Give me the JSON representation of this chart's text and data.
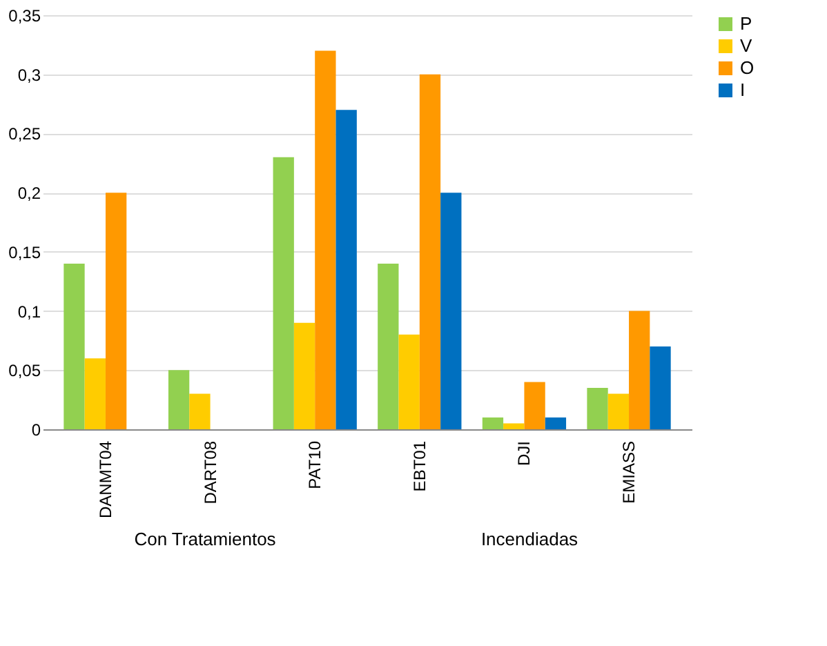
{
  "chart_data": {
    "type": "bar",
    "categories": [
      "DANMT04",
      "DART08",
      "PAT10",
      "EBT01",
      "DJI",
      "EMIASS"
    ],
    "series": [
      {
        "name": "P",
        "color": "#92d050",
        "values": [
          0.14,
          0.05,
          0.23,
          0.14,
          0.01,
          0.035
        ]
      },
      {
        "name": "V",
        "color": "#ffcc00",
        "values": [
          0.06,
          0.03,
          0.09,
          0.08,
          0.005,
          0.03
        ]
      },
      {
        "name": "O",
        "color": "#ff9900",
        "values": [
          0.2,
          null,
          0.32,
          0.3,
          0.04,
          0.1
        ]
      },
      {
        "name": "I",
        "color": "#0070c0",
        "values": [
          null,
          null,
          0.27,
          0.2,
          0.01,
          0.07
        ]
      }
    ],
    "ylim": [
      0,
      0.35
    ],
    "yticks": [
      0,
      {
        "value": 0.05,
        "label": "0,05"
      },
      {
        "value": 0.1,
        "label": "0,1"
      },
      {
        "value": 0.15,
        "label": "0,15"
      },
      {
        "value": 0.2,
        "label": "0,2"
      },
      {
        "value": 0.25,
        "label": "0,25"
      },
      {
        "value": 0.3,
        "label": "0,3"
      },
      {
        "value": 0.35,
        "label": "0,35"
      }
    ],
    "grid": "y",
    "legend": "right",
    "annotations": [
      "Con Tratamientos",
      "Incendiadas"
    ]
  }
}
